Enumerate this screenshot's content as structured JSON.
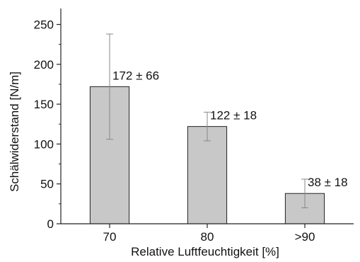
{
  "chart_data": {
    "type": "bar",
    "categories": [
      "70",
      "80",
      ">90"
    ],
    "values": [
      172,
      122,
      38
    ],
    "errors": [
      66,
      18,
      18
    ],
    "data_labels": [
      "172 ± 66",
      "122 ± 18",
      "38 ± 18"
    ],
    "xlabel": "Relative Luftfeuchtigkeit [%]",
    "ylabel": "Schälwiderstand [N/m]",
    "ylim": [
      0,
      270
    ],
    "yticks": [
      "0",
      "50",
      "100",
      "150",
      "200",
      "250"
    ],
    "grid": false,
    "colors": {
      "bar_fill": "#c8c8c8",
      "bar_stroke": "#222222",
      "error_bar": "#888888",
      "axis": "#222222"
    }
  }
}
